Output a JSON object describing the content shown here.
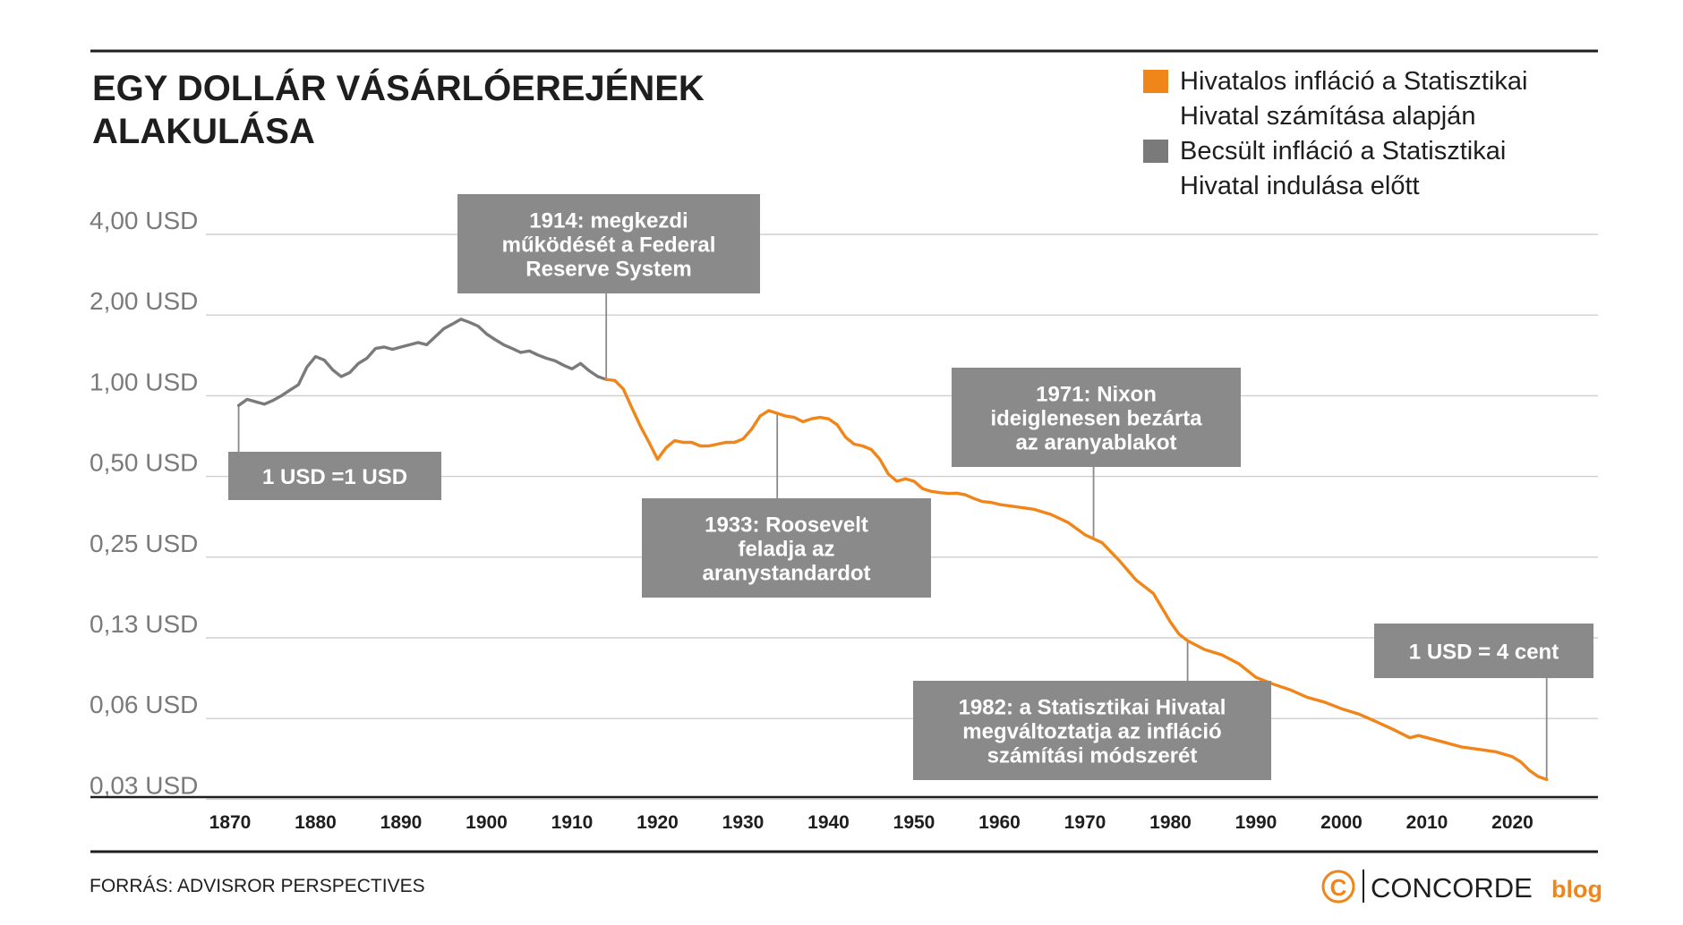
{
  "chart_data": {
    "type": "line",
    "title_lines": [
      "EGY DOLLÁR VÁSÁRLÓEREJÉNEK",
      "ALAKULÁSA"
    ],
    "y_scale": "log2",
    "ylim": [
      0.03,
      4.0
    ],
    "xlim": [
      1870,
      2025
    ],
    "y_ticks": [
      {
        "value": 4.0,
        "label": "4,00 USD"
      },
      {
        "value": 2.0,
        "label": "2,00 USD"
      },
      {
        "value": 1.0,
        "label": "1,00 USD"
      },
      {
        "value": 0.5,
        "label": "0,50 USD"
      },
      {
        "value": 0.25,
        "label": "0,25 USD"
      },
      {
        "value": 0.125,
        "label": "0,13 USD"
      },
      {
        "value": 0.0625,
        "label": "0,06 USD"
      },
      {
        "value": 0.03125,
        "label": "0,03 USD"
      }
    ],
    "x_ticks": [
      {
        "value": 1870,
        "label": "1870"
      },
      {
        "value": 1880,
        "label": "1880"
      },
      {
        "value": 1890,
        "label": "1890"
      },
      {
        "value": 1900,
        "label": "1900"
      },
      {
        "value": 1910,
        "label": "1910"
      },
      {
        "value": 1920,
        "label": "1920"
      },
      {
        "value": 1930,
        "label": "1930"
      },
      {
        "value": 1940,
        "label": "1940"
      },
      {
        "value": 1950,
        "label": "1950"
      },
      {
        "value": 1960,
        "label": "1960"
      },
      {
        "value": 1970,
        "label": "1970"
      },
      {
        "value": 1980,
        "label": "1980"
      },
      {
        "value": 1990,
        "label": "1990"
      },
      {
        "value": 2000,
        "label": "2000"
      },
      {
        "value": 2010,
        "label": "2010"
      },
      {
        "value": 2020,
        "label": "2020"
      }
    ],
    "grid": true,
    "legend_position": "top-right",
    "series": [
      {
        "name": "Becsült infláció a Statisztikai Hivatal indulása előtt",
        "legend_lines": [
          "Becsült infláció a Statisztikai",
          "Hivatal indulása előtt"
        ],
        "color": "#7a7a7a",
        "points": [
          [
            1871,
            0.92
          ],
          [
            1872,
            0.97
          ],
          [
            1873,
            0.95
          ],
          [
            1874,
            0.93
          ],
          [
            1875,
            0.96
          ],
          [
            1876,
            1.0
          ],
          [
            1877,
            1.05
          ],
          [
            1878,
            1.1
          ],
          [
            1879,
            1.28
          ],
          [
            1880,
            1.4
          ],
          [
            1881,
            1.36
          ],
          [
            1882,
            1.25
          ],
          [
            1883,
            1.18
          ],
          [
            1884,
            1.22
          ],
          [
            1885,
            1.32
          ],
          [
            1886,
            1.38
          ],
          [
            1887,
            1.5
          ],
          [
            1888,
            1.52
          ],
          [
            1889,
            1.49
          ],
          [
            1890,
            1.52
          ],
          [
            1891,
            1.55
          ],
          [
            1892,
            1.58
          ],
          [
            1893,
            1.55
          ],
          [
            1894,
            1.66
          ],
          [
            1895,
            1.78
          ],
          [
            1896,
            1.85
          ],
          [
            1897,
            1.93
          ],
          [
            1898,
            1.88
          ],
          [
            1899,
            1.82
          ],
          [
            1900,
            1.7
          ],
          [
            1901,
            1.62
          ],
          [
            1902,
            1.55
          ],
          [
            1903,
            1.5
          ],
          [
            1904,
            1.45
          ],
          [
            1905,
            1.47
          ],
          [
            1906,
            1.42
          ],
          [
            1907,
            1.38
          ],
          [
            1908,
            1.35
          ],
          [
            1909,
            1.3
          ],
          [
            1910,
            1.26
          ],
          [
            1911,
            1.32
          ],
          [
            1912,
            1.24
          ],
          [
            1913,
            1.18
          ],
          [
            1914,
            1.15
          ]
        ]
      },
      {
        "name": "Hivatalos infláció a Statisztikai Hivatal számítása alapján",
        "legend_lines": [
          "Hivatalos infláció a Statisztikai",
          "Hivatal számítása alapján"
        ],
        "color": "#f08519",
        "points": [
          [
            1914,
            1.15
          ],
          [
            1915,
            1.14
          ],
          [
            1916,
            1.06
          ],
          [
            1917,
            0.9
          ],
          [
            1918,
            0.77
          ],
          [
            1919,
            0.67
          ],
          [
            1920,
            0.58
          ],
          [
            1921,
            0.64
          ],
          [
            1922,
            0.68
          ],
          [
            1923,
            0.67
          ],
          [
            1924,
            0.67
          ],
          [
            1925,
            0.65
          ],
          [
            1926,
            0.65
          ],
          [
            1927,
            0.66
          ],
          [
            1928,
            0.67
          ],
          [
            1929,
            0.67
          ],
          [
            1930,
            0.69
          ],
          [
            1931,
            0.75
          ],
          [
            1932,
            0.84
          ],
          [
            1933,
            0.88
          ],
          [
            1934,
            0.86
          ],
          [
            1935,
            0.84
          ],
          [
            1936,
            0.83
          ],
          [
            1937,
            0.8
          ],
          [
            1938,
            0.82
          ],
          [
            1939,
            0.83
          ],
          [
            1940,
            0.82
          ],
          [
            1941,
            0.78
          ],
          [
            1942,
            0.7
          ],
          [
            1943,
            0.66
          ],
          [
            1944,
            0.65
          ],
          [
            1945,
            0.63
          ],
          [
            1946,
            0.58
          ],
          [
            1947,
            0.51
          ],
          [
            1948,
            0.48
          ],
          [
            1949,
            0.49
          ],
          [
            1950,
            0.48
          ],
          [
            1951,
            0.45
          ],
          [
            1952,
            0.44
          ],
          [
            1953,
            0.435
          ],
          [
            1954,
            0.432
          ],
          [
            1955,
            0.433
          ],
          [
            1956,
            0.427
          ],
          [
            1957,
            0.414
          ],
          [
            1958,
            0.403
          ],
          [
            1959,
            0.4
          ],
          [
            1960,
            0.393
          ],
          [
            1962,
            0.385
          ],
          [
            1964,
            0.377
          ],
          [
            1966,
            0.361
          ],
          [
            1968,
            0.337
          ],
          [
            1970,
            0.303
          ],
          [
            1972,
            0.283
          ],
          [
            1974,
            0.243
          ],
          [
            1976,
            0.205
          ],
          [
            1978,
            0.183
          ],
          [
            1980,
            0.143
          ],
          [
            1981,
            0.129
          ],
          [
            1982,
            0.122
          ],
          [
            1984,
            0.113
          ],
          [
            1986,
            0.108
          ],
          [
            1988,
            0.1
          ],
          [
            1990,
            0.089
          ],
          [
            1992,
            0.084
          ],
          [
            1994,
            0.08
          ],
          [
            1996,
            0.075
          ],
          [
            1998,
            0.072
          ],
          [
            2000,
            0.068
          ],
          [
            2002,
            0.065
          ],
          [
            2004,
            0.061
          ],
          [
            2006,
            0.057
          ],
          [
            2008,
            0.053
          ],
          [
            2009,
            0.054
          ],
          [
            2010,
            0.053
          ],
          [
            2012,
            0.051
          ],
          [
            2014,
            0.049
          ],
          [
            2016,
            0.048
          ],
          [
            2018,
            0.047
          ],
          [
            2020,
            0.045
          ],
          [
            2021,
            0.043
          ],
          [
            2022,
            0.04
          ],
          [
            2023,
            0.038
          ],
          [
            2024,
            0.037
          ]
        ]
      }
    ],
    "annotations": [
      {
        "lines": [
          "1 USD =1 USD"
        ],
        "x": 1871,
        "y": 0.92
      },
      {
        "lines": [
          "1914: megkezdi",
          "működését a Federal",
          "Reserve System"
        ],
        "x": 1914,
        "y": 1.15
      },
      {
        "lines": [
          "1933: Roosevelt",
          "feladja az",
          "aranystandardot"
        ],
        "x": 1934,
        "y": 0.86
      },
      {
        "lines": [
          "1971: Nixon",
          "ideiglenesen bezárta",
          "az aranyablakot"
        ],
        "x": 1971,
        "y": 0.294
      },
      {
        "lines": [
          "1982: a Statisztikai Hivatal",
          "megváltoztatja az infláció",
          "számítási módszerét"
        ],
        "x": 1982,
        "y": 0.122
      },
      {
        "lines": [
          "1 USD = 4 cent"
        ],
        "x": 2024,
        "y": 0.037
      }
    ]
  },
  "footer": {
    "source": "FORRÁS: ADVISROR PERSPECTIVES",
    "logo_symbol": "C",
    "logo_name": "CONCORDE",
    "logo_suffix": "blog"
  },
  "colors": {
    "orange": "#f08519",
    "grey_series": "#7a7a7a",
    "annotation_box": "#8a8a8a",
    "grid": "#cfcfcf",
    "axis_text": "#7a7a7a",
    "dark": "#1e1e1e"
  }
}
